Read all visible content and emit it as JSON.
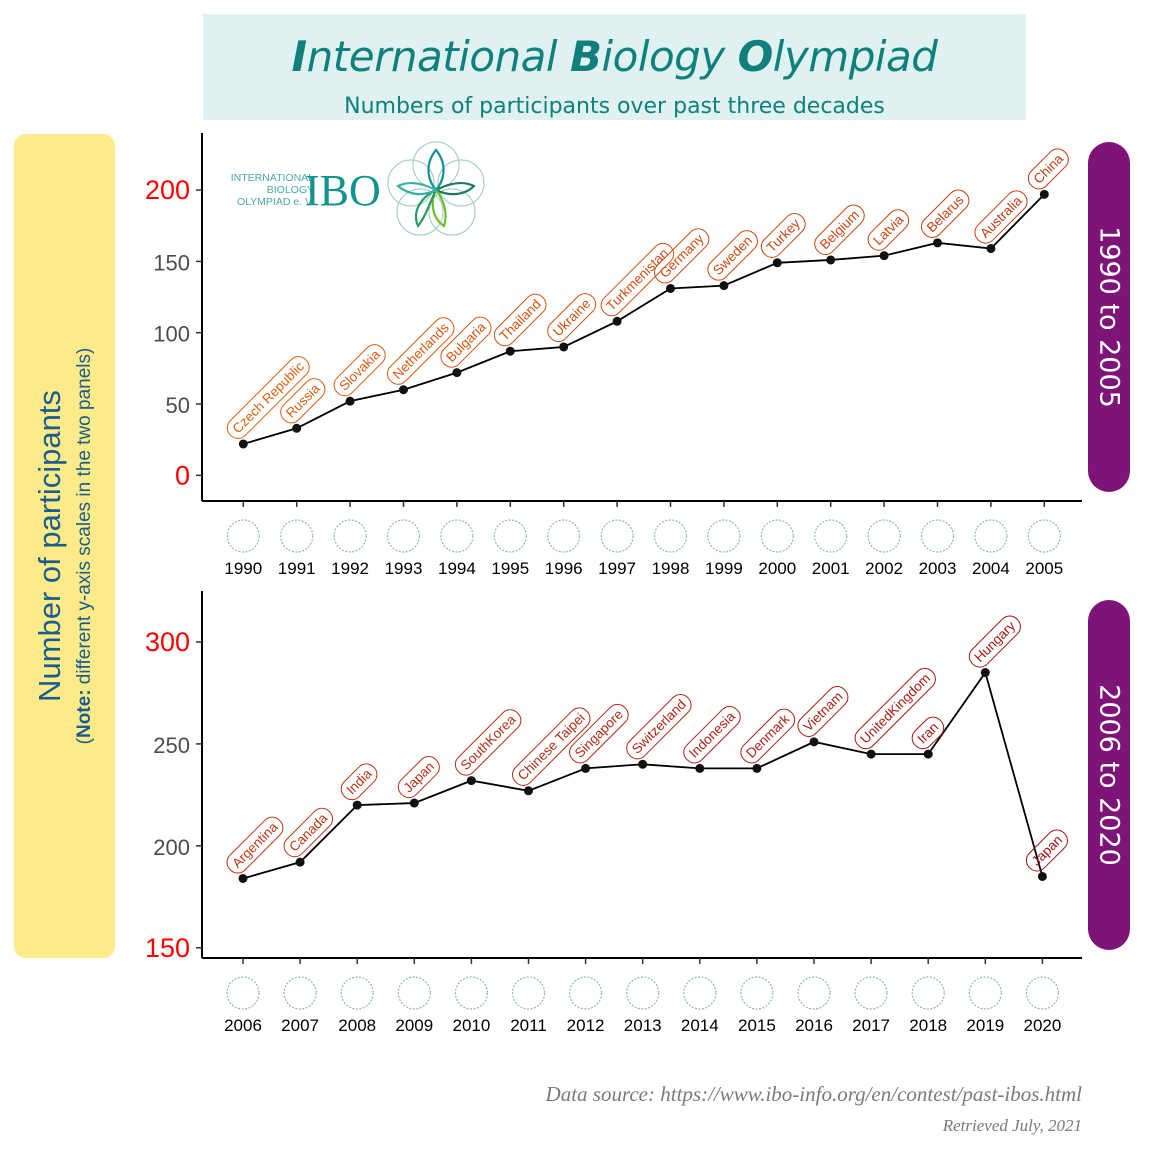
{
  "header": {
    "title_parts": [
      {
        "text": "I",
        "bold": true
      },
      {
        "text": "nternational ",
        "bold": false
      },
      {
        "text": "B",
        "bold": true
      },
      {
        "text": "iology ",
        "bold": false
      },
      {
        "text": "O",
        "bold": true
      },
      {
        "text": "lympiad",
        "bold": false
      }
    ],
    "subtitle": "Numbers of participants over past three decades"
  },
  "y_axis_label": {
    "main": "Number of participants",
    "note_bold": "Note:",
    "note_rest": " different y-axis scales in the two panels)",
    "note_open": "("
  },
  "logo": {
    "line1": "INTERNATIONAL",
    "line2": "BIOLOGY",
    "line3": "OLYMPIAD e. V.",
    "mark": "IBO"
  },
  "footer": {
    "source": "Data source: https://www.ibo-info.org/en/contest/past-ibos.html",
    "retrieved": "Retrieved July, 2021"
  },
  "colors": {
    "title": "#10807c",
    "panel_strip": "#7e1477",
    "ylab_bg": "#fdeb8a",
    "title_bg": "#dff1f1",
    "highlight_tick": "#ff0000",
    "label_start": "#e0600e",
    "label_end": "#a11414"
  },
  "chart_data": [
    {
      "type": "line",
      "panel": "1990 to 2005",
      "xlabel": "",
      "ylabel": "Number of participants",
      "ylim": [
        -18,
        240
      ],
      "yticks": [
        0,
        50,
        100,
        150,
        200
      ],
      "highlight_yticks": [
        0,
        200
      ],
      "grid": false,
      "x": [
        1990,
        1991,
        1992,
        1993,
        1994,
        1995,
        1996,
        1997,
        1998,
        1999,
        2000,
        2001,
        2002,
        2003,
        2004,
        2005
      ],
      "values": [
        22,
        33,
        52,
        60,
        72,
        87,
        90,
        108,
        131,
        133,
        149,
        151,
        154,
        163,
        159,
        197
      ],
      "host_countries": [
        "Czech Republic",
        "Russia",
        "Slovakia",
        "Netherlands",
        "Bulgaria",
        "Thailand",
        "Ukraine",
        "Turkmenistan",
        "Germany",
        "Sweden",
        "Turkey",
        "Belgium",
        "Latvia",
        "Belarus",
        "Australia",
        "China"
      ]
    },
    {
      "type": "line",
      "panel": "2006 to 2020",
      "xlabel": "",
      "ylabel": "Number of participants",
      "ylim": [
        145,
        325
      ],
      "yticks": [
        150,
        200,
        250,
        300
      ],
      "highlight_yticks": [
        150,
        300
      ],
      "grid": false,
      "x": [
        2006,
        2007,
        2008,
        2009,
        2010,
        2011,
        2012,
        2013,
        2014,
        2015,
        2016,
        2017,
        2018,
        2019,
        2020
      ],
      "values": [
        184,
        192,
        220,
        221,
        232,
        227,
        238,
        240,
        238,
        238,
        251,
        245,
        245,
        285,
        185
      ],
      "host_countries": [
        "Argentina",
        "Canada",
        "India",
        "Japan",
        "SouthKorea",
        "Chinese Taipei",
        "Singapore",
        "Switzerland",
        "Indonesia",
        "Denmark",
        "Vietnam",
        "UnitedKingdom",
        "Iran",
        "Hungary",
        "Japan"
      ]
    }
  ]
}
